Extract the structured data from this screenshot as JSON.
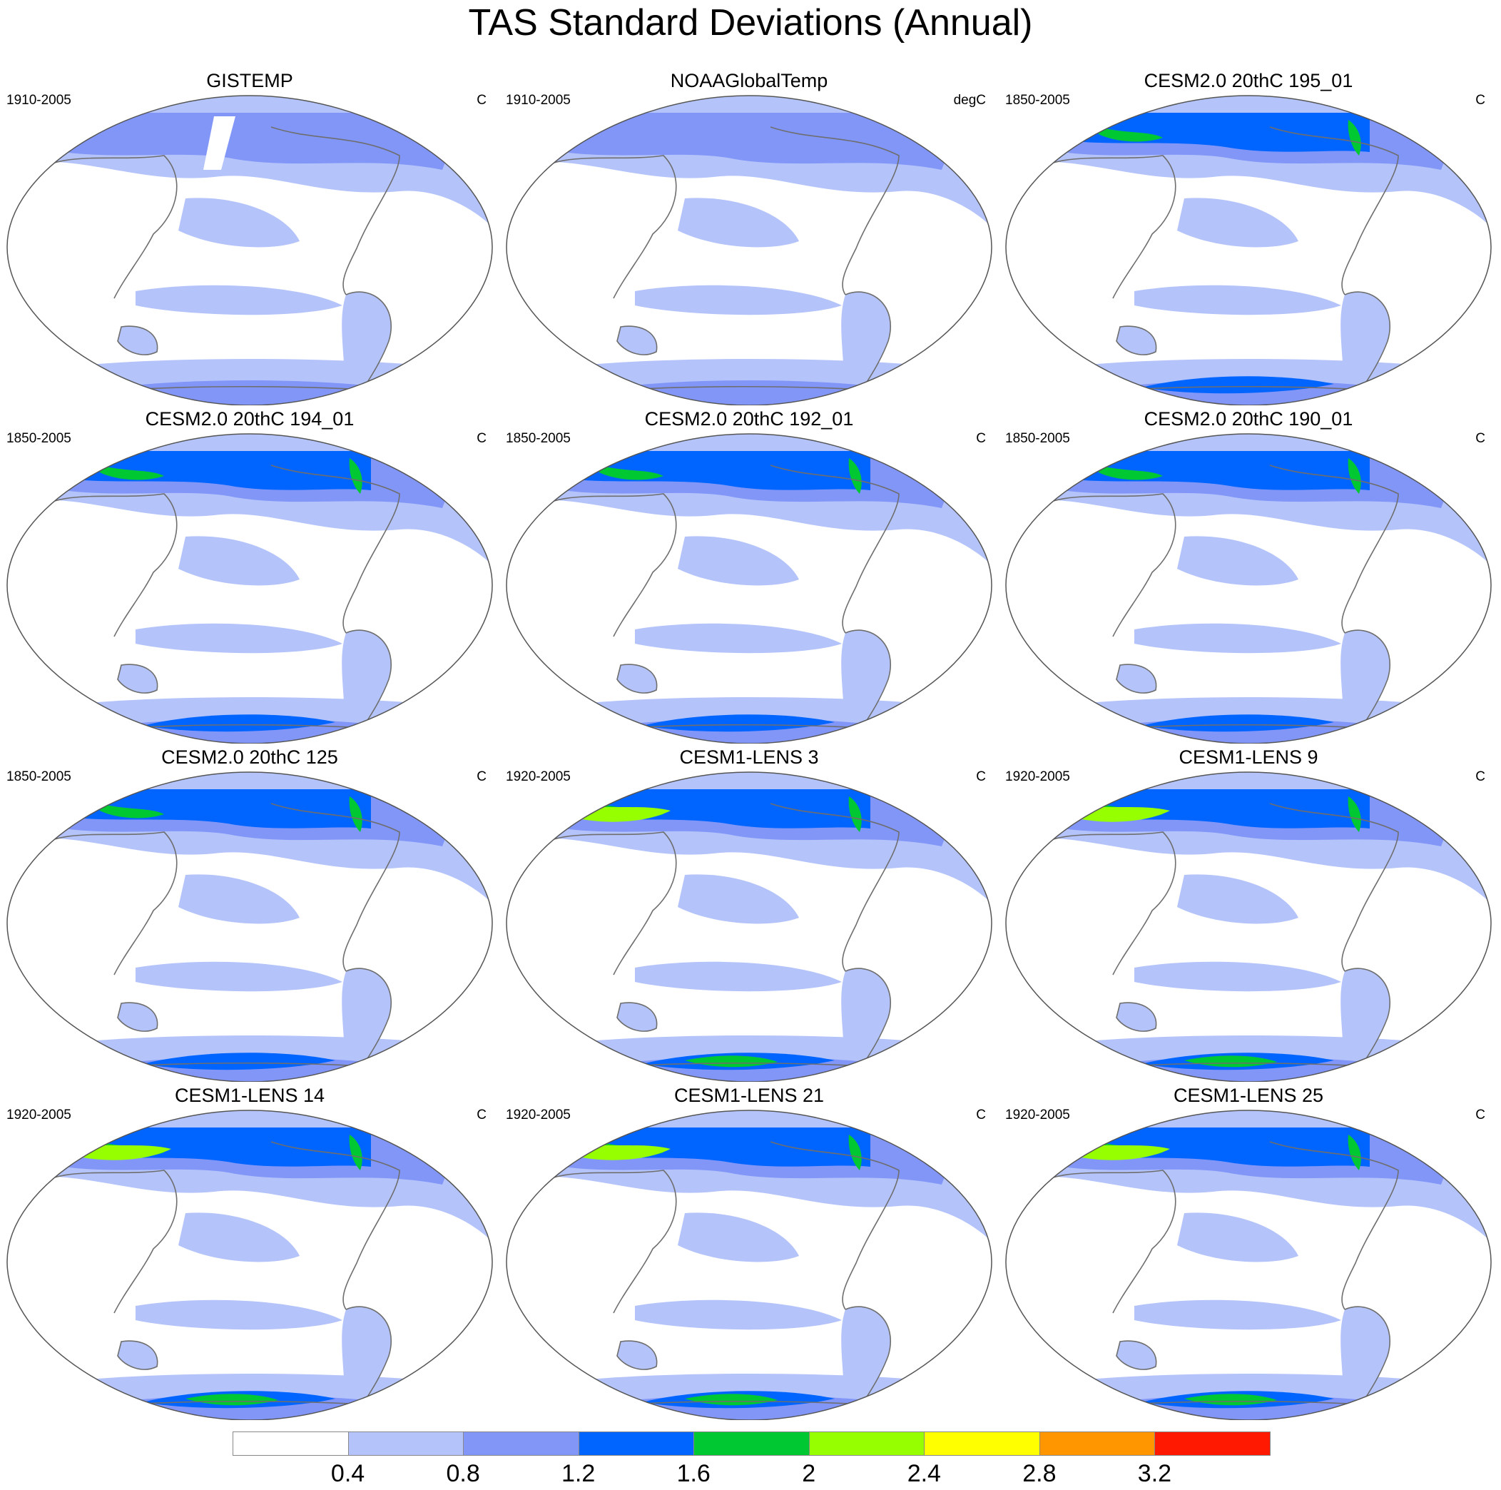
{
  "title": "TAS Standard Deviations (Annual)",
  "panels": [
    {
      "title": "GISTEMP",
      "period": "1910-2005",
      "units": "C",
      "kind": "gis"
    },
    {
      "title": "NOAAGlobalTemp",
      "period": "1910-2005",
      "units": "degC",
      "kind": "noaa"
    },
    {
      "title": "CESM2.0 20thC 195_01",
      "period": "1850-2005",
      "units": "C",
      "kind": "cesm2"
    },
    {
      "title": "CESM2.0 20thC 194_01",
      "period": "1850-2005",
      "units": "C",
      "kind": "cesm2"
    },
    {
      "title": "CESM2.0 20thC 192_01",
      "period": "1850-2005",
      "units": "C",
      "kind": "cesm2"
    },
    {
      "title": "CESM2.0 20thC 190_01",
      "period": "1850-2005",
      "units": "C",
      "kind": "cesm2"
    },
    {
      "title": "CESM2.0 20thC 125",
      "period": "1850-2005",
      "units": "C",
      "kind": "cesm2"
    },
    {
      "title": "CESM1-LENS 3",
      "period": "1920-2005",
      "units": "C",
      "kind": "lens"
    },
    {
      "title": "CESM1-LENS 9",
      "period": "1920-2005",
      "units": "C",
      "kind": "lens"
    },
    {
      "title": "CESM1-LENS 14",
      "period": "1920-2005",
      "units": "C",
      "kind": "lens"
    },
    {
      "title": "CESM1-LENS 21",
      "period": "1920-2005",
      "units": "C",
      "kind": "lens"
    },
    {
      "title": "CESM1-LENS 25",
      "period": "1920-2005",
      "units": "C",
      "kind": "lens"
    }
  ],
  "colorbar": {
    "colors": [
      "#ffffff",
      "#b4c4fa",
      "#8296f8",
      "#0064ff",
      "#00c832",
      "#96ff00",
      "#ffff00",
      "#ff9600",
      "#ff1900"
    ],
    "labels": [
      "0.4",
      "0.8",
      "1.2",
      "1.6",
      "2",
      "2.4",
      "2.8",
      "3.2"
    ]
  },
  "colors": {
    "land_outline": "#6e6e6e",
    "map_border": "#555555"
  }
}
